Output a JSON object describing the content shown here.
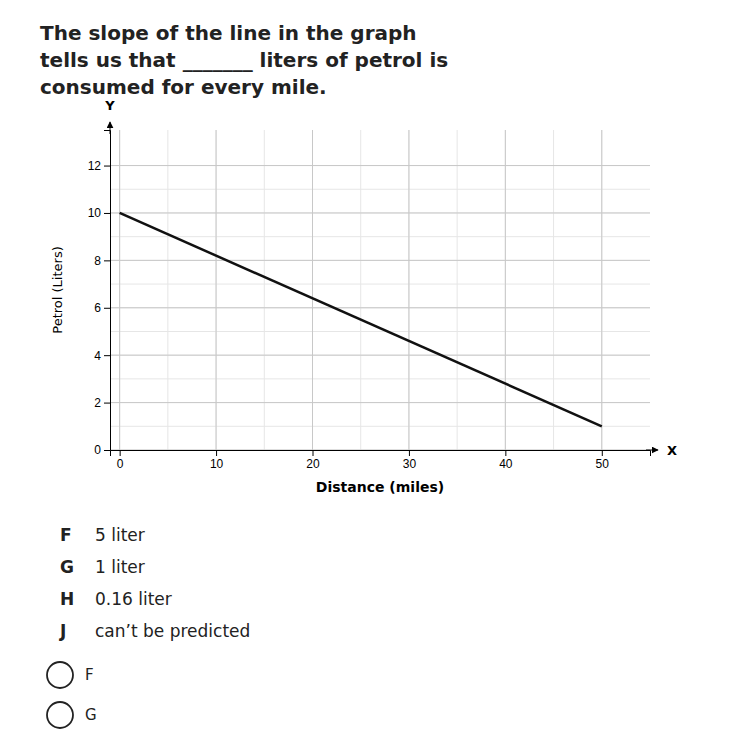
{
  "chart_data": {
    "type": "line",
    "title": [
      "The slope of the line in the graph",
      "tells us that _______ liters of petrol is",
      "consumed for every mile."
    ],
    "xlabel": "Distance (miles)",
    "ylabel": "Petrol (Liters)",
    "x": [
      0,
      50
    ],
    "values": [
      10,
      1
    ],
    "color": "#111111",
    "xlim": [
      -1,
      55
    ],
    "ylim": [
      0,
      13.5
    ],
    "xticks": [
      0,
      10,
      20,
      30,
      40,
      50
    ],
    "yticks": [
      0,
      2,
      4,
      6,
      8,
      10,
      12
    ],
    "minor_xticks": [
      0,
      5,
      10,
      15,
      20,
      25,
      30,
      35,
      40,
      45,
      50
    ],
    "minor_yticks": [
      0,
      1,
      2,
      3,
      4,
      5,
      6,
      7,
      8,
      9,
      10,
      11,
      12
    ],
    "grid": true,
    "annotations": [
      "X",
      "Y"
    ],
    "choices": [
      {
        "letter": "F",
        "text": "5 liter"
      },
      {
        "letter": "G",
        "text": "1 liter"
      },
      {
        "letter": "H",
        "text": "0.16 liter"
      },
      {
        "letter": "J",
        "text": "can’t be predicted"
      }
    ],
    "radio_choices": [
      "F",
      "G"
    ]
  }
}
